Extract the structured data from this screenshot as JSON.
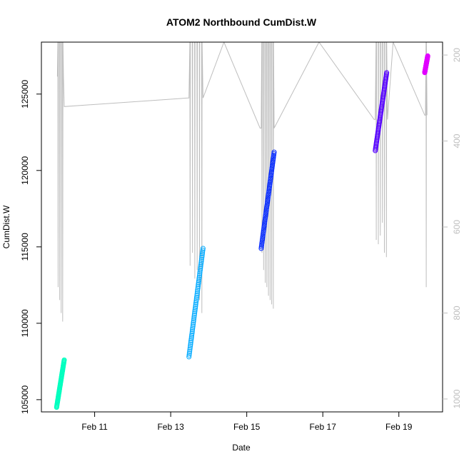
{
  "chart_data": {
    "type": "scatter",
    "title": "ATOM2 Northbound CumDist.W",
    "xlabel": "Date",
    "ylabel": "CumDist.W",
    "x_ticks": [
      "Feb 11",
      "Feb 13",
      "Feb 15",
      "Feb 17",
      "Feb 19"
    ],
    "y_ticks": [
      "105000",
      "110000",
      "115000",
      "120000",
      "125000"
    ],
    "y2_ticks": [
      "200",
      "400",
      "600",
      "800",
      "1000"
    ],
    "x_range_days": [
      9.6,
      20.15
    ],
    "ylim": [
      104200,
      128400
    ],
    "y2lim": [
      1030,
      170
    ],
    "y2_reversed": true,
    "y2_color": "#bebebe",
    "background_trace_color": "#bebebe",
    "series": [
      {
        "color": "#00FFBF",
        "x_days": [
          10.0,
          10.2
        ],
        "y": [
          104500,
          107600
        ]
      },
      {
        "color": "#00AAFF",
        "x_days": [
          13.48,
          13.85
        ],
        "y": [
          107800,
          114900
        ]
      },
      {
        "color": "#0026FF",
        "x_days": [
          15.38,
          15.72
        ],
        "y": [
          114900,
          121200
        ]
      },
      {
        "color": "#5500FF",
        "x_days": [
          18.38,
          18.68
        ],
        "y": [
          121300,
          126400
        ]
      },
      {
        "color": "#E100FF",
        "x_days": [
          19.68,
          19.76
        ],
        "y": [
          126400,
          127500
        ]
      }
    ]
  }
}
